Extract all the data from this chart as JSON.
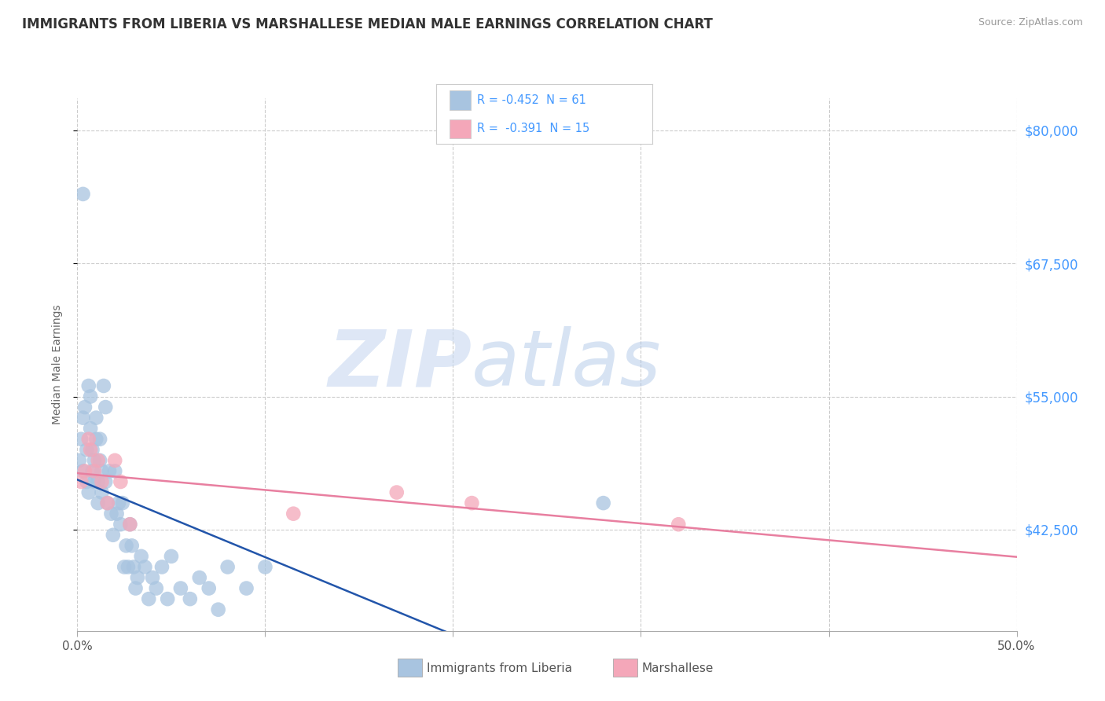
{
  "title": "IMMIGRANTS FROM LIBERIA VS MARSHALLESE MEDIAN MALE EARNINGS CORRELATION CHART",
  "source": "Source: ZipAtlas.com",
  "ylabel": "Median Male Earnings",
  "xlim": [
    0.0,
    0.5
  ],
  "ylim": [
    33000,
    83000
  ],
  "xtick_labels": [
    "0.0%",
    "",
    "",
    "",
    "",
    "50.0%"
  ],
  "xtick_vals": [
    0.0,
    0.1,
    0.2,
    0.3,
    0.4,
    0.5
  ],
  "ytick_vals": [
    42500,
    55000,
    67500,
    80000
  ],
  "ytick_labels": [
    "$42,500",
    "$55,000",
    "$67,500",
    "$80,000"
  ],
  "grid_color": "#cccccc",
  "background_color": "#ffffff",
  "watermark_text": "ZIP",
  "watermark_text2": "atlas",
  "legend_text1": "R = -0.452  N = 61",
  "legend_text2": "R =  -0.391  N = 15",
  "color_liberia": "#a8c4e0",
  "color_marshallese": "#f4a7b9",
  "line_color_liberia": "#2255aa",
  "line_color_marshallese": "#e87fa0",
  "text_color_blue": "#4499ff",
  "liberia_x": [
    0.001,
    0.002,
    0.003,
    0.003,
    0.004,
    0.005,
    0.005,
    0.006,
    0.006,
    0.007,
    0.007,
    0.008,
    0.008,
    0.009,
    0.009,
    0.01,
    0.01,
    0.011,
    0.011,
    0.012,
    0.012,
    0.013,
    0.013,
    0.014,
    0.015,
    0.015,
    0.016,
    0.017,
    0.018,
    0.019,
    0.02,
    0.021,
    0.022,
    0.023,
    0.024,
    0.025,
    0.026,
    0.027,
    0.028,
    0.029,
    0.03,
    0.031,
    0.032,
    0.034,
    0.036,
    0.038,
    0.04,
    0.042,
    0.045,
    0.048,
    0.05,
    0.055,
    0.06,
    0.065,
    0.07,
    0.075,
    0.08,
    0.09,
    0.1,
    0.003,
    0.28
  ],
  "liberia_y": [
    49000,
    51000,
    53000,
    48000,
    54000,
    47000,
    50000,
    56000,
    46000,
    55000,
    52000,
    50000,
    48000,
    49000,
    47000,
    51000,
    53000,
    47000,
    45000,
    49000,
    51000,
    48000,
    46000,
    56000,
    54000,
    47000,
    45000,
    48000,
    44000,
    42000,
    48000,
    44000,
    45000,
    43000,
    45000,
    39000,
    41000,
    39000,
    43000,
    41000,
    39000,
    37000,
    38000,
    40000,
    39000,
    36000,
    38000,
    37000,
    39000,
    36000,
    40000,
    37000,
    36000,
    38000,
    37000,
    35000,
    39000,
    37000,
    39000,
    74000,
    45000
  ],
  "marshallese_x": [
    0.002,
    0.004,
    0.007,
    0.009,
    0.011,
    0.013,
    0.016,
    0.02,
    0.023,
    0.028,
    0.115,
    0.17,
    0.21,
    0.32,
    0.006
  ],
  "marshallese_y": [
    47000,
    48000,
    50000,
    48000,
    49000,
    47000,
    45000,
    49000,
    47000,
    43000,
    44000,
    46000,
    45000,
    43000,
    51000
  ]
}
